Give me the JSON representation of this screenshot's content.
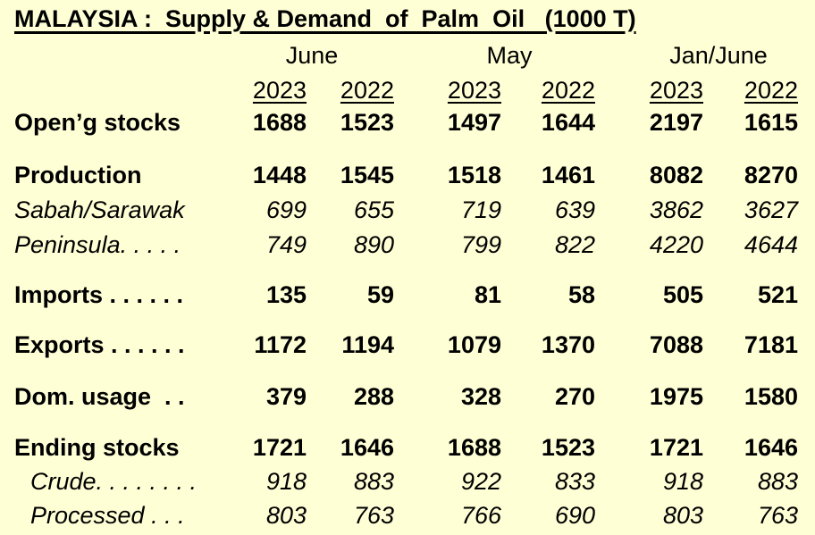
{
  "title": "MALAYSIA :  Supply & Demand  of  Palm  Oil   (1000 T)",
  "groups": [
    "June",
    "May",
    "Jan/June"
  ],
  "years": [
    "2023",
    "2022",
    "2023",
    "2022",
    "2023",
    "2022"
  ],
  "rows": [
    {
      "label": "Open’g stocks",
      "style": "main",
      "values": [
        "1688",
        "1523",
        "1497",
        "1644",
        "2197",
        "1615"
      ]
    },
    {
      "label": "Production",
      "style": "main",
      "values": [
        "1448",
        "1545",
        "1518",
        "1461",
        "8082",
        "8270"
      ]
    },
    {
      "label": "Sabah/Sarawak",
      "style": "sub",
      "values": [
        "699",
        "655",
        "719",
        "639",
        "3862",
        "3627"
      ]
    },
    {
      "label": "Peninsula. . . . .",
      "style": "sub",
      "values": [
        "749",
        "890",
        "799",
        "822",
        "4220",
        "4644"
      ]
    },
    {
      "label": "Imports . . . . . .",
      "style": "main",
      "values": [
        "135",
        "59",
        "81",
        "58",
        "505",
        "521"
      ]
    },
    {
      "label": "Exports . . . . . .",
      "style": "main",
      "values": [
        "1172",
        "1194",
        "1079",
        "1370",
        "7088",
        "7181"
      ]
    },
    {
      "label": "Dom. usage  . .",
      "style": "main",
      "values": [
        "379",
        "288",
        "328",
        "270",
        "1975",
        "1580"
      ]
    },
    {
      "label": "Ending stocks",
      "style": "main",
      "values": [
        "1721",
        "1646",
        "1688",
        "1523",
        "1721",
        "1646"
      ]
    },
    {
      "label": "Crude. . . . . . . .",
      "style": "sub2",
      "values": [
        "918",
        "883",
        "922",
        "833",
        "918",
        "883"
      ]
    },
    {
      "label": "Processed . . .",
      "style": "sub2",
      "values": [
        "803",
        "763",
        "766",
        "690",
        "803",
        "763"
      ]
    }
  ]
}
